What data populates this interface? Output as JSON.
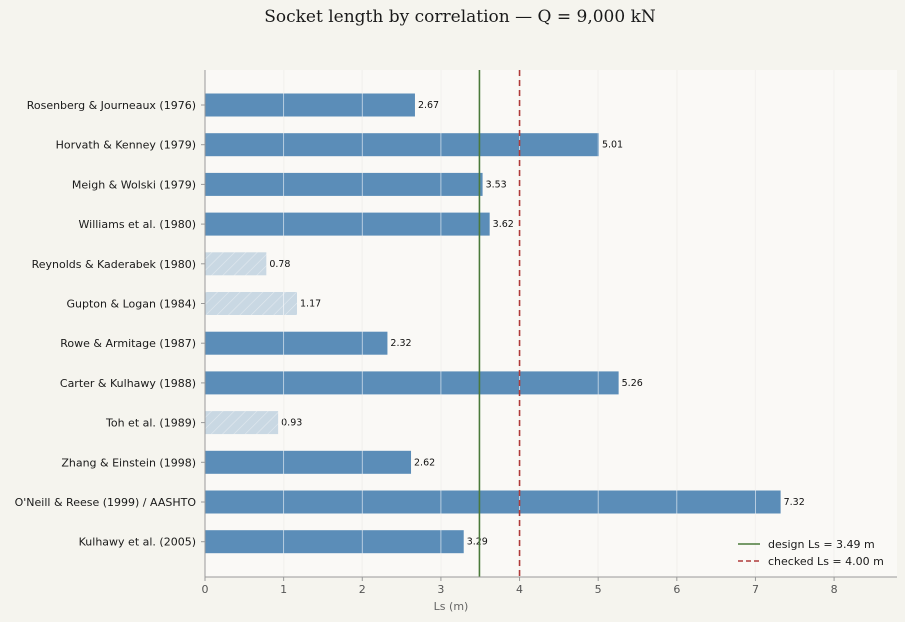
{
  "chart_data": {
    "type": "bar",
    "orientation": "horizontal",
    "title": "Socket length by correlation — Q = 9,000 kN",
    "xlabel": "Ls (m)",
    "ylabel": "",
    "xlim": [
      0,
      8.8
    ],
    "xticks": [
      0,
      1,
      2,
      3,
      4,
      5,
      6,
      7,
      8
    ],
    "grid": "vertical",
    "categories": [
      "Rosenberg & Journeaux (1976)",
      "Horvath & Kenney (1979)",
      "Meigh & Wolski (1979)",
      "Williams et al. (1980)",
      "Reynolds & Kaderabek (1980)",
      "Gupton & Logan (1984)",
      "Rowe & Armitage (1987)",
      "Carter & Kulhawy (1988)",
      "Toh et al. (1989)",
      "Zhang & Einstein (1998)",
      "O'Neill & Reese (1999) / AASHTO",
      "Kulhawy et al. (2005)"
    ],
    "values": [
      2.67,
      5.01,
      3.53,
      3.62,
      0.78,
      1.17,
      2.32,
      5.26,
      0.93,
      2.62,
      7.32,
      3.29
    ],
    "value_labels": [
      "2.67",
      "5.01",
      "3.53",
      "3.62",
      "0.78",
      "1.17",
      "2.32",
      "5.26",
      "0.93",
      "2.62",
      "7.32",
      "3.29"
    ],
    "muted": [
      false,
      false,
      false,
      false,
      true,
      true,
      false,
      false,
      true,
      false,
      false,
      false
    ],
    "bar_color": "#5b8db8",
    "muted_color": "#c9d8e3",
    "reference_lines": [
      {
        "label": "design Ls = 3.49 m",
        "value": 3.49,
        "color": "#4a7a3a",
        "style": "solid"
      },
      {
        "label": "checked Ls = 4.00 m",
        "value": 4.0,
        "color": "#b03a3a",
        "style": "dashed"
      }
    ],
    "legend": "bottom-right"
  }
}
